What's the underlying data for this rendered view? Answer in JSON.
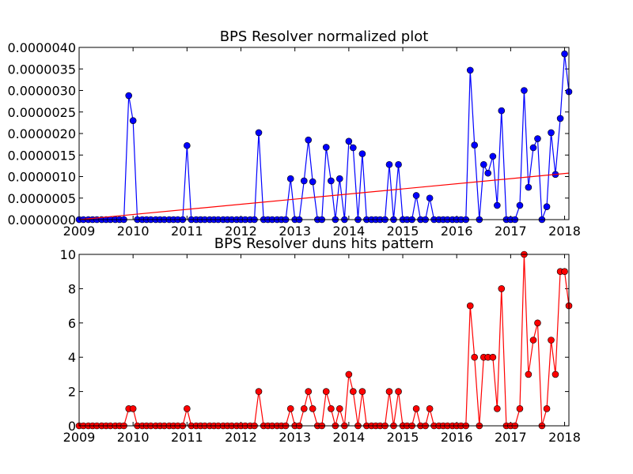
{
  "chart_data": [
    {
      "type": "line",
      "title": "BPS Resolver normalized plot",
      "x": [
        2009,
        2009.08,
        2009.17,
        2009.25,
        2009.33,
        2009.42,
        2009.5,
        2009.58,
        2009.67,
        2009.75,
        2009.83,
        2009.92,
        2010,
        2010.08,
        2010.17,
        2010.25,
        2010.33,
        2010.42,
        2010.5,
        2010.58,
        2010.67,
        2010.75,
        2010.83,
        2010.92,
        2011,
        2011.08,
        2011.17,
        2011.25,
        2011.33,
        2011.42,
        2011.5,
        2011.58,
        2011.67,
        2011.75,
        2011.83,
        2011.92,
        2012,
        2012.08,
        2012.17,
        2012.25,
        2012.33,
        2012.42,
        2012.5,
        2012.58,
        2012.67,
        2012.75,
        2012.83,
        2012.92,
        2013,
        2013.08,
        2013.17,
        2013.25,
        2013.33,
        2013.42,
        2013.5,
        2013.58,
        2013.67,
        2013.75,
        2013.83,
        2013.92,
        2014,
        2014.08,
        2014.17,
        2014.25,
        2014.33,
        2014.42,
        2014.5,
        2014.58,
        2014.67,
        2014.75,
        2014.83,
        2014.92,
        2015,
        2015.08,
        2015.17,
        2015.25,
        2015.33,
        2015.42,
        2015.5,
        2015.58,
        2015.67,
        2015.75,
        2015.83,
        2015.92,
        2016,
        2016.08,
        2016.17,
        2016.25,
        2016.33,
        2016.42,
        2016.5,
        2016.58,
        2016.67,
        2016.75,
        2016.83,
        2016.92,
        2017,
        2017.08,
        2017.17,
        2017.25,
        2017.33,
        2017.42,
        2017.5,
        2017.58,
        2017.67,
        2017.75,
        2017.83,
        2017.92,
        2018,
        2018.08
      ],
      "series": [
        {
          "color": "#0000ff",
          "values": [
            0,
            0,
            0,
            0,
            0,
            0,
            0,
            0,
            0,
            0,
            0,
            2.88e-06,
            2.3e-06,
            0,
            0,
            0,
            0,
            0,
            0,
            0,
            0,
            0,
            0,
            0,
            1.72e-06,
            0,
            0,
            0,
            0,
            0,
            0,
            0,
            0,
            0,
            0,
            0,
            0,
            0,
            0,
            0,
            2.02e-06,
            0,
            0,
            0,
            0,
            0,
            0,
            9.5e-07,
            0,
            0,
            9e-07,
            1.85e-06,
            8.8e-07,
            0,
            0,
            1.68e-06,
            9e-07,
            0,
            9.5e-07,
            0,
            1.82e-06,
            1.67e-06,
            0,
            1.53e-06,
            0,
            0,
            0,
            0,
            0,
            1.28e-06,
            0,
            1.28e-06,
            0,
            0,
            0,
            5.6e-07,
            0,
            0,
            5e-07,
            0,
            0,
            0,
            0,
            0,
            0,
            0,
            0,
            3.47e-06,
            1.73e-06,
            0,
            1.28e-06,
            1.08e-06,
            1.47e-06,
            3.3e-07,
            2.53e-06,
            0,
            0,
            0,
            3.3e-07,
            3e-06,
            7.5e-07,
            1.67e-06,
            1.88e-06,
            0,
            3e-07,
            2.02e-06,
            1.05e-06,
            2.35e-06,
            3.85e-06,
            2.97e-06
          ]
        }
      ],
      "trend_line": {
        "x": [
          2009,
          2018.08
        ],
        "values": [
          0,
          1.08e-06
        ],
        "color": "#ff0000"
      },
      "xlim": [
        2009,
        2018.08
      ],
      "xticks": [
        2009,
        2010,
        2011,
        2012,
        2013,
        2014,
        2015,
        2016,
        2017,
        2018
      ],
      "ylim": [
        0,
        4e-06
      ],
      "yticks": [
        {
          "value": 0,
          "label": "0.0000000"
        },
        {
          "value": 5e-07,
          "label": "0.0000005"
        },
        {
          "value": 1e-06,
          "label": "0.0000010"
        },
        {
          "value": 1.5e-06,
          "label": "0.0000015"
        },
        {
          "value": 2e-06,
          "label": "0.0000020"
        },
        {
          "value": 2.5e-06,
          "label": "0.0000025"
        },
        {
          "value": 3e-06,
          "label": "0.0000030"
        },
        {
          "value": 3.5e-06,
          "label": "0.0000035"
        },
        {
          "value": 4e-06,
          "label": "0.0000040"
        }
      ]
    },
    {
      "type": "line",
      "title": "BPS Resolver duns hits pattern",
      "x": [
        2009,
        2009.08,
        2009.17,
        2009.25,
        2009.33,
        2009.42,
        2009.5,
        2009.58,
        2009.67,
        2009.75,
        2009.83,
        2009.92,
        2010,
        2010.08,
        2010.17,
        2010.25,
        2010.33,
        2010.42,
        2010.5,
        2010.58,
        2010.67,
        2010.75,
        2010.83,
        2010.92,
        2011,
        2011.08,
        2011.17,
        2011.25,
        2011.33,
        2011.42,
        2011.5,
        2011.58,
        2011.67,
        2011.75,
        2011.83,
        2011.92,
        2012,
        2012.08,
        2012.17,
        2012.25,
        2012.33,
        2012.42,
        2012.5,
        2012.58,
        2012.67,
        2012.75,
        2012.83,
        2012.92,
        2013,
        2013.08,
        2013.17,
        2013.25,
        2013.33,
        2013.42,
        2013.5,
        2013.58,
        2013.67,
        2013.75,
        2013.83,
        2013.92,
        2014,
        2014.08,
        2014.17,
        2014.25,
        2014.33,
        2014.42,
        2014.5,
        2014.58,
        2014.67,
        2014.75,
        2014.83,
        2014.92,
        2015,
        2015.08,
        2015.17,
        2015.25,
        2015.33,
        2015.42,
        2015.5,
        2015.58,
        2015.67,
        2015.75,
        2015.83,
        2015.92,
        2016,
        2016.08,
        2016.17,
        2016.25,
        2016.33,
        2016.42,
        2016.5,
        2016.58,
        2016.67,
        2016.75,
        2016.83,
        2016.92,
        2017,
        2017.08,
        2017.17,
        2017.25,
        2017.33,
        2017.42,
        2017.5,
        2017.58,
        2017.67,
        2017.75,
        2017.83,
        2017.92,
        2018,
        2018.08
      ],
      "series": [
        {
          "color": "#ff0000",
          "values": [
            0,
            0,
            0,
            0,
            0,
            0,
            0,
            0,
            0,
            0,
            0,
            1,
            1,
            0,
            0,
            0,
            0,
            0,
            0,
            0,
            0,
            0,
            0,
            0,
            1,
            0,
            0,
            0,
            0,
            0,
            0,
            0,
            0,
            0,
            0,
            0,
            0,
            0,
            0,
            0,
            2,
            0,
            0,
            0,
            0,
            0,
            0,
            1,
            0,
            0,
            1,
            2,
            1,
            0,
            0,
            2,
            1,
            0,
            1,
            0,
            3,
            2,
            0,
            2,
            0,
            0,
            0,
            0,
            0,
            2,
            0,
            2,
            0,
            0,
            0,
            1,
            0,
            0,
            1,
            0,
            0,
            0,
            0,
            0,
            0,
            0,
            0,
            7,
            4,
            0,
            4,
            4,
            4,
            1,
            8,
            0,
            0,
            0,
            1,
            10,
            3,
            5,
            6,
            0,
            1,
            5,
            3,
            9,
            9,
            7
          ]
        }
      ],
      "xlim": [
        2009,
        2018.08
      ],
      "xticks": [
        2009,
        2010,
        2011,
        2012,
        2013,
        2014,
        2015,
        2016,
        2017,
        2018
      ],
      "ylim": [
        0,
        10
      ],
      "yticks": [
        0,
        2,
        4,
        6,
        8,
        10
      ]
    }
  ]
}
